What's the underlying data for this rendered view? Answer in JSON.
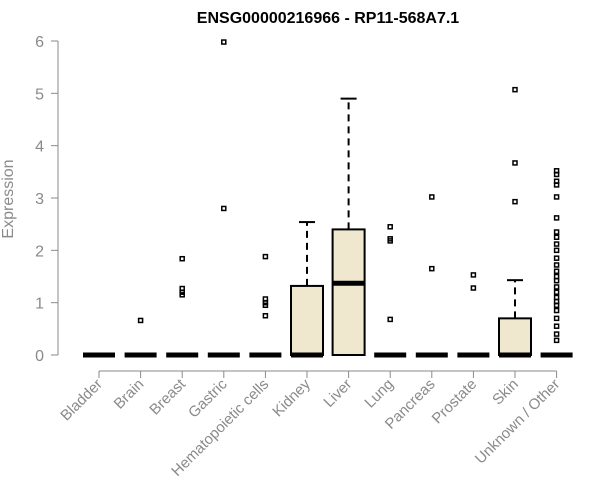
{
  "chart_data": {
    "type": "box",
    "title": "ENSG00000216966 - RP11-568A7.1",
    "xlabel": "",
    "ylabel": "Expression",
    "ylim": [
      0,
      6
    ],
    "yticks": [
      "0",
      "1",
      "2",
      "3",
      "4",
      "5",
      "6"
    ],
    "grid": false,
    "categories": [
      "Bladder",
      "Brain",
      "Breast",
      "Gastric",
      "Hematopoietic cells",
      "Kidney",
      "Liver",
      "Lung",
      "Pancreas",
      "Prostate",
      "Skin",
      "Unknown / Other"
    ],
    "series": [
      {
        "category": "Bladder",
        "q1": 0,
        "median": 0,
        "q3": 0,
        "whisker_low": 0,
        "whisker_high": 0,
        "outliers": []
      },
      {
        "category": "Brain",
        "q1": 0,
        "median": 0,
        "q3": 0,
        "whisker_low": 0,
        "whisker_high": 0,
        "outliers": [
          0.66
        ]
      },
      {
        "category": "Breast",
        "q1": 0,
        "median": 0,
        "q3": 0,
        "whisker_low": 0,
        "whisker_high": 0,
        "outliers": [
          1.15,
          1.2,
          1.27,
          1.84
        ]
      },
      {
        "category": "Gastric",
        "q1": 0,
        "median": 0,
        "q3": 0,
        "whisker_low": 0,
        "whisker_high": 0,
        "outliers": [
          2.8,
          5.98
        ]
      },
      {
        "category": "Hematopoietic cells",
        "q1": 0,
        "median": 0,
        "q3": 0,
        "whisker_low": 0,
        "whisker_high": 0,
        "outliers": [
          0.75,
          0.95,
          1.0,
          1.07,
          1.88
        ]
      },
      {
        "category": "Kidney",
        "q1": 0,
        "median": 0,
        "q3": 1.32,
        "whisker_low": 0,
        "whisker_high": 2.54,
        "outliers": []
      },
      {
        "category": "Liver",
        "q1": 0,
        "median": 1.37,
        "q3": 2.4,
        "whisker_low": 0,
        "whisker_high": 4.9,
        "outliers": []
      },
      {
        "category": "Lung",
        "q1": 0,
        "median": 0,
        "q3": 0,
        "whisker_low": 0,
        "whisker_high": 0,
        "outliers": [
          0.68,
          2.18,
          2.22,
          2.45
        ]
      },
      {
        "category": "Pancreas",
        "q1": 0,
        "median": 0,
        "q3": 0,
        "whisker_low": 0,
        "whisker_high": 0,
        "outliers": [
          1.65,
          3.02
        ]
      },
      {
        "category": "Prostate",
        "q1": 0,
        "median": 0,
        "q3": 0,
        "whisker_low": 0,
        "whisker_high": 0,
        "outliers": [
          1.28,
          1.53
        ]
      },
      {
        "category": "Skin",
        "q1": 0,
        "median": 0,
        "q3": 0.7,
        "whisker_low": 0,
        "whisker_high": 1.43,
        "outliers": [
          2.93,
          3.67,
          5.07
        ]
      },
      {
        "category": "Unknown / Other",
        "q1": 0,
        "median": 0,
        "q3": 0,
        "whisker_low": 0,
        "whisker_high": 0,
        "outliers": [
          0.28,
          0.4,
          0.55,
          0.7,
          0.85,
          0.95,
          1.02,
          1.1,
          1.2,
          1.3,
          1.42,
          1.5,
          1.6,
          1.72,
          1.85,
          2.0,
          2.12,
          2.25,
          2.35,
          2.62,
          3.02,
          3.25,
          3.32,
          3.45,
          3.52
        ]
      }
    ]
  }
}
